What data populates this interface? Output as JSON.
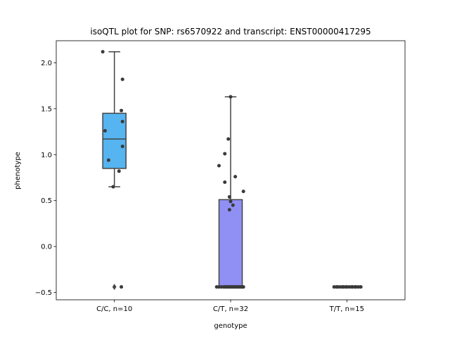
{
  "chart_data": {
    "type": "box",
    "title": "isoQTL plot for SNP: rs6570922 and transcript: ENST00000417295",
    "xlabel": "genotype",
    "ylabel": "phenotype",
    "categories": [
      "C/C, n=10",
      "C/T, n=32",
      "T/T, n=15"
    ],
    "ylim": [
      -0.58,
      2.24
    ],
    "yticks": [
      -0.5,
      0.0,
      0.5,
      1.0,
      1.5,
      2.0
    ],
    "ytick_labels": [
      "−0.5",
      "0.0",
      "0.5",
      "1.0",
      "1.5",
      "2.0"
    ],
    "grid": false,
    "boxes": [
      {
        "category": "C/C, n=10",
        "color": "#56b4f0",
        "q1": 0.85,
        "median": 1.17,
        "q3": 1.45,
        "whisker_low": 0.65,
        "whisker_high": 2.12,
        "outliers": [
          -0.44
        ]
      },
      {
        "category": "C/T, n=32",
        "color": "#9090f4",
        "q1": -0.44,
        "median": -0.44,
        "q3": 0.51,
        "whisker_low": -0.44,
        "whisker_high": 1.63,
        "outliers": []
      },
      {
        "category": "T/T, n=15",
        "color": "#b070e8",
        "q1": -0.44,
        "median": -0.44,
        "q3": -0.44,
        "whisker_low": -0.44,
        "whisker_high": -0.44,
        "outliers": []
      }
    ],
    "points": [
      [
        {
          "j": -0.1,
          "y": 2.12
        },
        {
          "j": 0.07,
          "y": 1.82
        },
        {
          "j": 0.06,
          "y": 1.48
        },
        {
          "j": 0.07,
          "y": 1.36
        },
        {
          "j": -0.08,
          "y": 1.26
        },
        {
          "j": 0.07,
          "y": 1.09
        },
        {
          "j": -0.05,
          "y": 0.94
        },
        {
          "j": 0.04,
          "y": 0.82
        },
        {
          "j": -0.01,
          "y": 0.65
        },
        {
          "j": 0.06,
          "y": -0.44
        }
      ],
      [
        {
          "j": 0.0,
          "y": 1.63
        },
        {
          "j": -0.02,
          "y": 1.17
        },
        {
          "j": -0.05,
          "y": 1.01
        },
        {
          "j": -0.1,
          "y": 0.88
        },
        {
          "j": 0.04,
          "y": 0.76
        },
        {
          "j": -0.05,
          "y": 0.7
        },
        {
          "j": 0.11,
          "y": 0.6
        },
        {
          "j": -0.01,
          "y": 0.54
        },
        {
          "j": 0.0,
          "y": 0.49
        },
        {
          "j": 0.02,
          "y": 0.45
        },
        {
          "j": -0.01,
          "y": 0.4
        },
        {
          "j": -0.12,
          "y": -0.44
        },
        {
          "j": -0.1,
          "y": -0.44
        },
        {
          "j": -0.08,
          "y": -0.44
        },
        {
          "j": -0.06,
          "y": -0.44
        },
        {
          "j": -0.05,
          "y": -0.44
        },
        {
          "j": -0.04,
          "y": -0.44
        },
        {
          "j": -0.03,
          "y": -0.44
        },
        {
          "j": -0.02,
          "y": -0.44
        },
        {
          "j": -0.01,
          "y": -0.44
        },
        {
          "j": 0.0,
          "y": -0.44
        },
        {
          "j": 0.01,
          "y": -0.44
        },
        {
          "j": 0.02,
          "y": -0.44
        },
        {
          "j": 0.03,
          "y": -0.44
        },
        {
          "j": 0.04,
          "y": -0.44
        },
        {
          "j": 0.05,
          "y": -0.44
        },
        {
          "j": 0.06,
          "y": -0.44
        },
        {
          "j": 0.07,
          "y": -0.44
        },
        {
          "j": 0.08,
          "y": -0.44
        },
        {
          "j": 0.09,
          "y": -0.44
        },
        {
          "j": 0.1,
          "y": -0.44
        },
        {
          "j": 0.11,
          "y": -0.44
        }
      ],
      [
        {
          "j": -0.11,
          "y": -0.44
        },
        {
          "j": -0.09,
          "y": -0.44
        },
        {
          "j": -0.08,
          "y": -0.44
        },
        {
          "j": -0.06,
          "y": -0.44
        },
        {
          "j": -0.04,
          "y": -0.44
        },
        {
          "j": -0.03,
          "y": -0.44
        },
        {
          "j": -0.01,
          "y": -0.44
        },
        {
          "j": 0.0,
          "y": -0.44
        },
        {
          "j": 0.02,
          "y": -0.44
        },
        {
          "j": 0.04,
          "y": -0.44
        },
        {
          "j": 0.05,
          "y": -0.44
        },
        {
          "j": 0.07,
          "y": -0.44
        },
        {
          "j": 0.08,
          "y": -0.44
        },
        {
          "j": 0.1,
          "y": -0.44
        },
        {
          "j": 0.12,
          "y": -0.44
        }
      ]
    ]
  }
}
